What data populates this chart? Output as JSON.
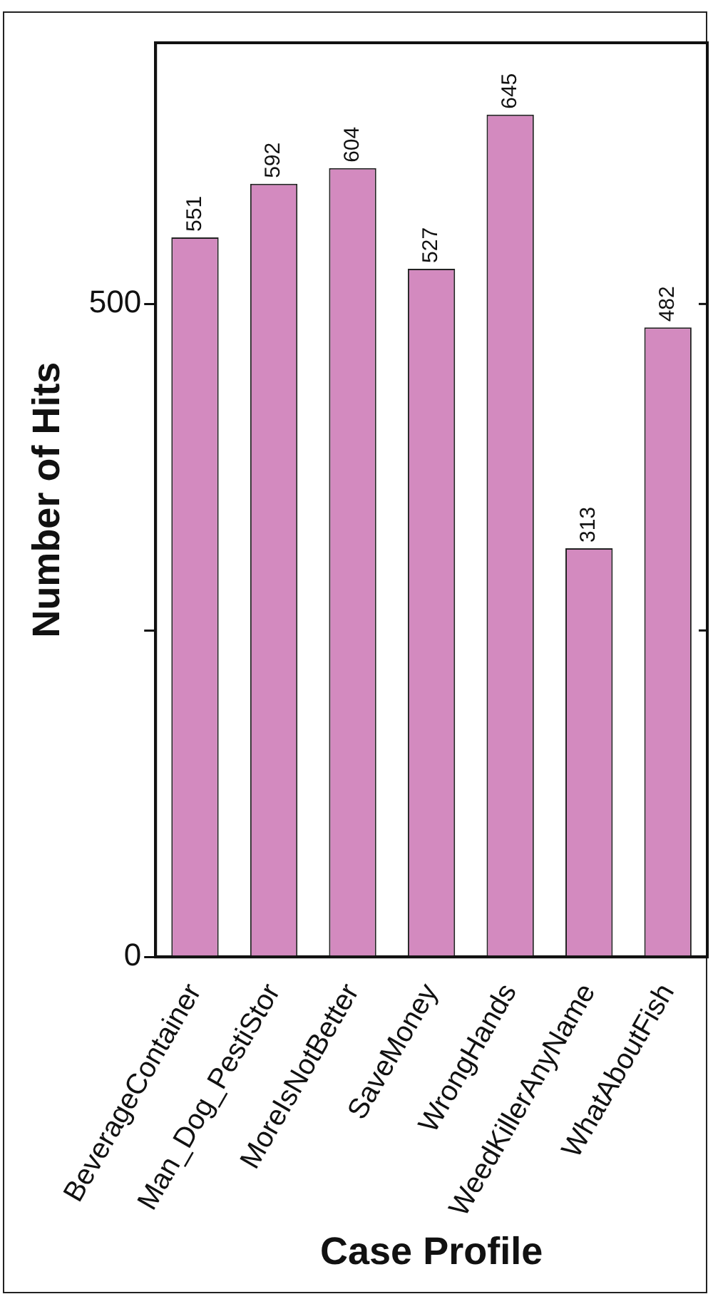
{
  "chart_data": {
    "type": "bar",
    "xlabel": "Case Profile",
    "ylabel": "Number of Hits",
    "categories": [
      "BeverageContainer",
      "Man_Dog_PestiStor",
      "MoreIsNotBetter",
      "SaveMoney",
      "WrongHands",
      "WeedKillerAnyName",
      "WhatAboutFish"
    ],
    "values": [
      551,
      592,
      604,
      527,
      645,
      313,
      482
    ],
    "color": "#d38abf",
    "ylim": [
      0,
      700
    ],
    "yticks": [
      0,
      {
        "value": 250,
        "label": null
      },
      500
    ],
    "grid": false,
    "legend": false,
    "data_labels": true
  }
}
